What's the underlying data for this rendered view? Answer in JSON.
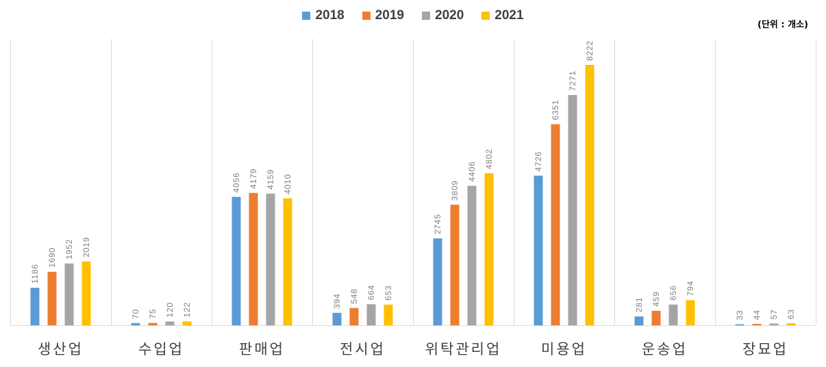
{
  "unit_label": "(단위 : 개소)",
  "chart_data": {
    "type": "bar",
    "categories": [
      "생산업",
      "수입업",
      "판매업",
      "전시업",
      "위탁관리업",
      "미용업",
      "운송업",
      "장묘업"
    ],
    "series": [
      {
        "name": "2018",
        "color": "#5B9BD5",
        "values": [
          1186,
          70,
          4056,
          394,
          2745,
          4726,
          281,
          33
        ]
      },
      {
        "name": "2019",
        "color": "#ED7D31",
        "values": [
          1690,
          75,
          4179,
          548,
          3809,
          6351,
          459,
          44
        ]
      },
      {
        "name": "2020",
        "color": "#A5A5A5",
        "values": [
          1952,
          120,
          4159,
          664,
          4406,
          7271,
          656,
          57
        ]
      },
      {
        "name": "2021",
        "color": "#FFC000",
        "values": [
          2019,
          122,
          4010,
          653,
          4802,
          8222,
          794,
          63
        ]
      }
    ],
    "ylim": [
      0,
      9000
    ],
    "grid": "vertical separators between categories",
    "legend": "top-center"
  }
}
